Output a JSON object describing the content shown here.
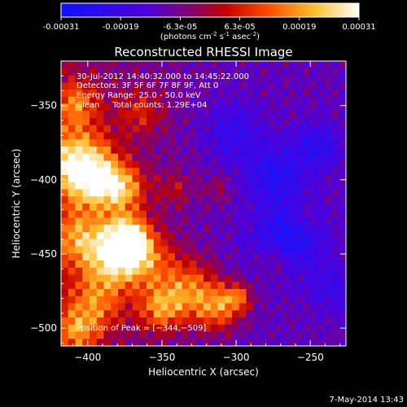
{
  "chart_data": {
    "type": "heatmap",
    "title": "Reconstructed RHESSI Image",
    "colorbar": {
      "ticks": [
        "-0.00031",
        "-0.00019",
        "-6.3e-05",
        "6.3e-05",
        "0.00019",
        "0.00031"
      ],
      "label_parts": [
        "(photons cm",
        "-2",
        " s",
        "-1",
        " asec",
        "-2",
        ")"
      ],
      "range": [
        -0.00031,
        0.00031
      ],
      "colormap": "blue-purple-red-orange-yellow-white"
    },
    "xlabel": "Heliocentric X (arcsec)",
    "ylabel": "Heliocentric Y (arcsec)",
    "xlim": [
      -418,
      -226
    ],
    "ylim": [
      -512,
      -320
    ],
    "xticks": [
      -400,
      -350,
      -300,
      -250
    ],
    "xtick_labels": [
      "−400",
      "−350",
      "−300",
      "−250"
    ],
    "yticks": [
      -350,
      -400,
      -450,
      -500
    ],
    "ytick_labels": [
      "−350",
      "−400",
      "−450",
      "−500"
    ],
    "info_lines": [
      "30-Jul-2012 14:40:32.000 to 14:45:22.000",
      "Detectors: 3F 5F 6F 7F 8F 9F, Att 0",
      "Energy Range: 25.0 - 50.0 keV",
      "Clean     Total counts: 1.29E+04"
    ],
    "peak_label": "Position of Peak = [−344,−509]",
    "peak": [
      -344,
      -509
    ]
  },
  "footer": {
    "timestamp": "7-May-2014 13:43"
  }
}
